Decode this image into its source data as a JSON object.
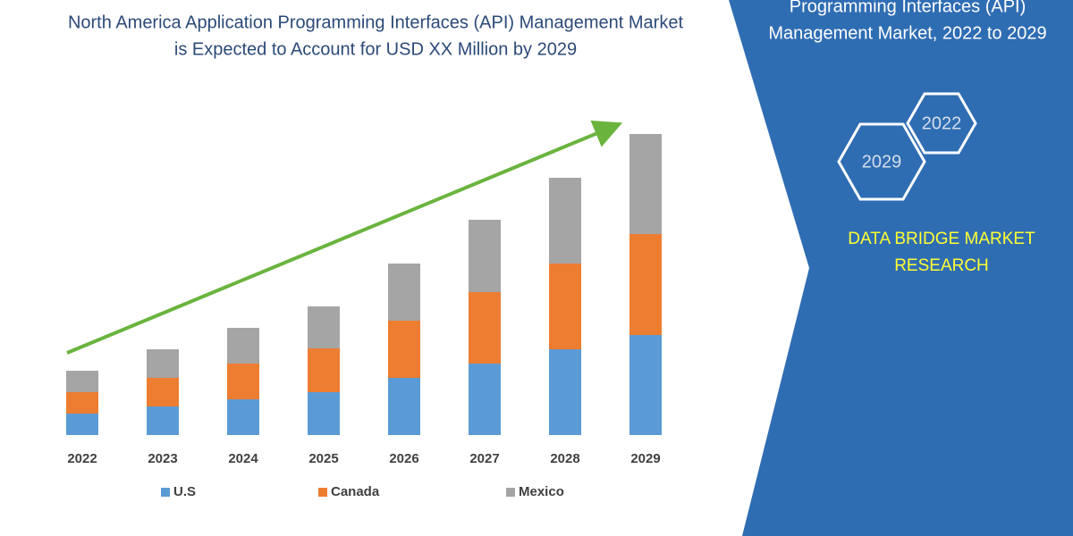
{
  "chart_data": {
    "type": "stacked_bar",
    "title": [
      "North America Application Programming Interfaces (API) Management Market",
      "is Expected to Account for USD XX Million by 2029"
    ],
    "categories": [
      "2022",
      "2023",
      "2024",
      "2025",
      "2026",
      "2027",
      "2028",
      "2029"
    ],
    "series": [
      {
        "name": "U.S",
        "color": "#5b9bd5",
        "values": [
          24,
          32,
          40,
          48,
          64,
          80,
          96,
          112
        ]
      },
      {
        "name": "Canada",
        "color": "#ed7d31",
        "values": [
          24,
          32,
          40,
          49,
          64,
          80,
          96,
          113
        ]
      },
      {
        "name": "Mexico",
        "color": "#a5a5a5",
        "values": [
          24,
          32,
          40,
          47,
          64,
          81,
          96,
          112
        ]
      }
    ]
  },
  "side_panel": {
    "title": [
      "Programming Interfaces (API)",
      "Management Market, 2022 to 2029"
    ],
    "hexagons": [
      "2022",
      "2029"
    ],
    "brand": [
      "DATA BRIDGE MARKET",
      "RESEARCH"
    ]
  }
}
